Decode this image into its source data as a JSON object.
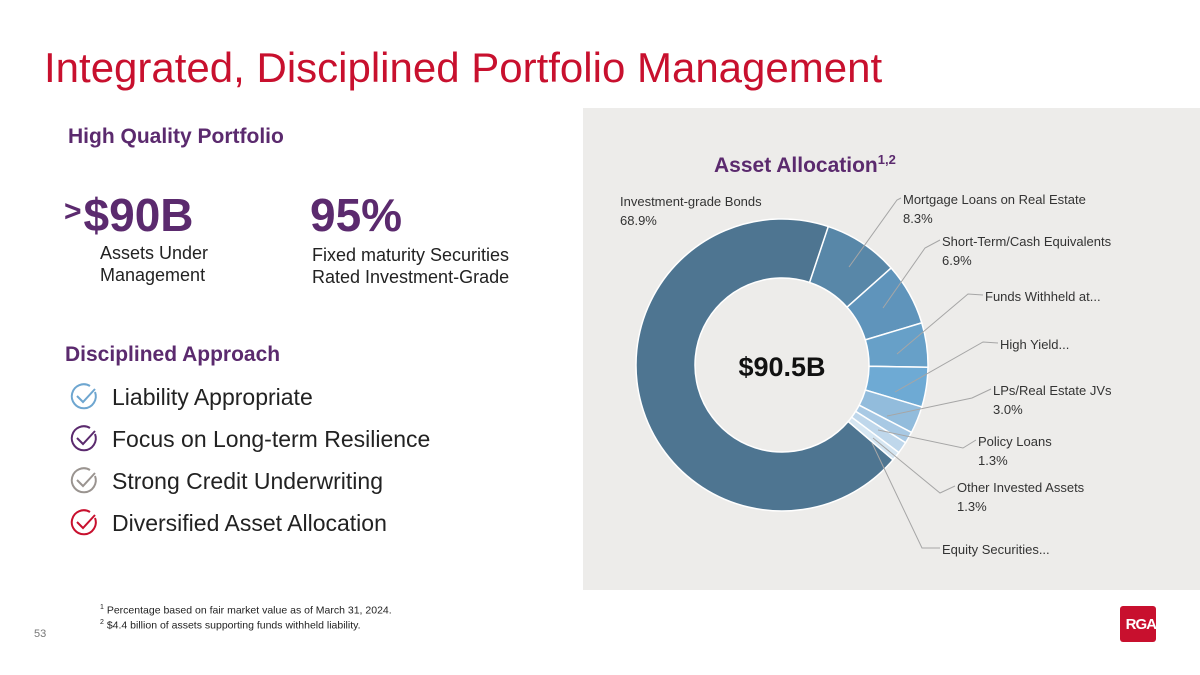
{
  "title": "Integrated, Disciplined Portfolio Management",
  "high_quality": {
    "heading": "High Quality Portfolio",
    "stat1": {
      "prefix": ">",
      "value": "$90B",
      "label1": "Assets Under",
      "label2": "Management"
    },
    "stat2": {
      "value": "95%",
      "label1": "Fixed maturity Securities",
      "label2": "Rated Investment-Grade"
    }
  },
  "approach": {
    "heading": "Disciplined Approach",
    "items": [
      {
        "label": "Liability Appropriate",
        "color": "#6ea6d0"
      },
      {
        "label": "Focus on Long-term Resilience",
        "color": "#5b2a6e"
      },
      {
        "label": "Strong Credit Underwriting",
        "color": "#9a9490"
      },
      {
        "label": "Diversified Asset Allocation",
        "color": "#c8102e"
      }
    ]
  },
  "chart_data": {
    "type": "pie",
    "title": "Asset Allocation",
    "title_sup": "1,2",
    "center_label": "$90.5B",
    "unit": "%",
    "categories": [
      "Investment-grade Bonds",
      "Mortgage Loans on Real Estate",
      "Short-Term/Cash Equivalents",
      "Funds Withheld at...",
      "High Yield...",
      "LPs/Real Estate JVs",
      "Policy Loans",
      "Other Invested Assets",
      "Equity Securities..."
    ],
    "value_labels": [
      "68.9%",
      "8.3%",
      "6.9%",
      "",
      "",
      "3.0%",
      "1.3%",
      "1.3%",
      ""
    ],
    "values": [
      68.9,
      8.3,
      6.9,
      4.9,
      4.4,
      3.0,
      1.3,
      1.3,
      1.0
    ],
    "colors": [
      "#4e7591",
      "#5887a8",
      "#5f94bb",
      "#67a0c8",
      "#6eaad4",
      "#92bcdc",
      "#a8c9e4",
      "#bfd7eb",
      "#d6e6f2"
    ]
  },
  "footnotes": [
    {
      "num": "1",
      "text": "Percentage based on fair market value as of March 31, 2024."
    },
    {
      "num": "2",
      "text": "$4.4 billion of assets supporting funds withheld liability."
    }
  ],
  "page_number": "53",
  "logo": "RGA"
}
